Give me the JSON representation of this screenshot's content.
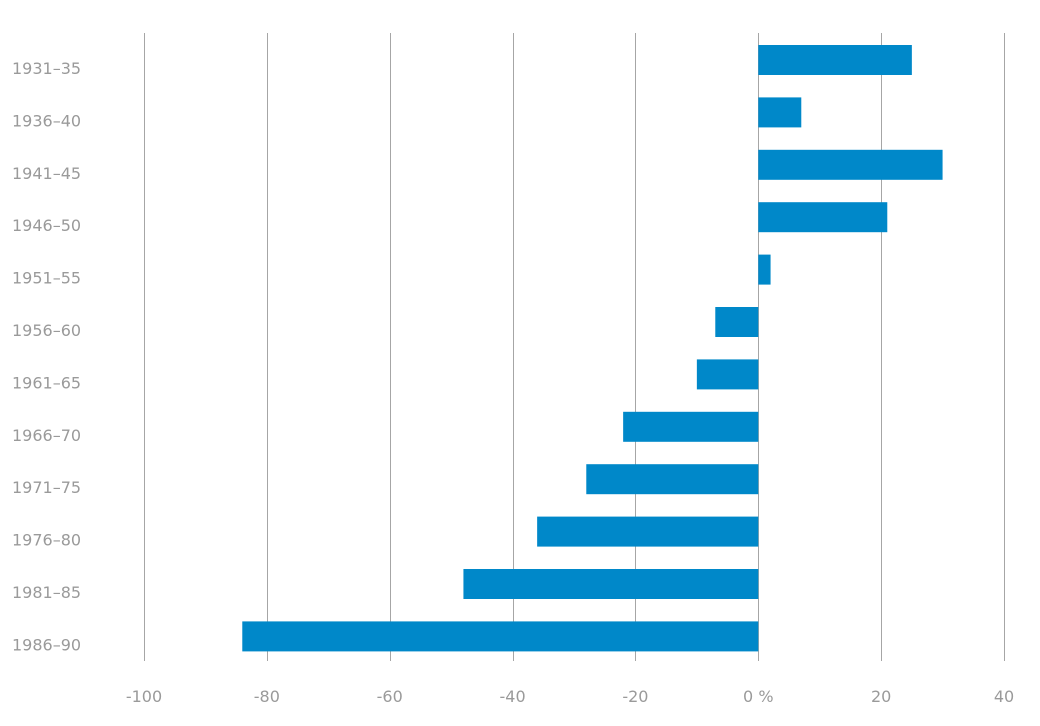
{
  "chart_data": {
    "type": "bar",
    "orientation": "horizontal",
    "title": "",
    "xlabel": "",
    "ylabel": "",
    "categories": [
      "1931–35",
      "1936–40",
      "1941–45",
      "1946–50",
      "1951–55",
      "1956–60",
      "1961–65",
      "1966–70",
      "1971–75",
      "1976–80",
      "1981–85",
      "1986–90"
    ],
    "values": [
      25,
      7,
      30,
      21,
      2,
      -7,
      -10,
      -22,
      -28,
      -36,
      -48,
      -84
    ],
    "xlim": [
      -100,
      40
    ],
    "x_ticks": [
      -100,
      -80,
      -60,
      -40,
      -20,
      0,
      20,
      40
    ],
    "x_tick_labels": [
      "-100",
      "-80",
      "-60",
      "-40",
      "-20",
      "0 %",
      "20",
      "40"
    ],
    "grid": "vertical",
    "bar_color": "#0088c9"
  }
}
